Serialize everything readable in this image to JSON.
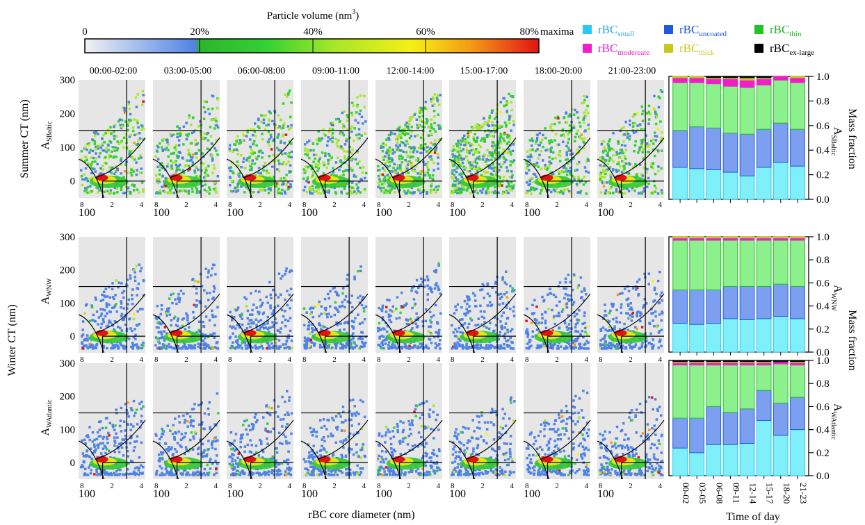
{
  "colorbar": {
    "title": "Particle volume (nm",
    "title_sup": "3",
    "title_close": ")",
    "ticks": [
      "0",
      "20%",
      "40%",
      "60%",
      "80%",
      "maxima"
    ],
    "gradient": [
      {
        "stop": 0.0,
        "color": "#f2f2f2"
      },
      {
        "stop": 0.245,
        "color": "#4f82e6"
      },
      {
        "stop": 0.25,
        "color": "#2db42d"
      },
      {
        "stop": 0.4,
        "color": "#32d232"
      },
      {
        "stop": 0.55,
        "color": "#a8e628"
      },
      {
        "stop": 0.72,
        "color": "#f5f014"
      },
      {
        "stop": 0.85,
        "color": "#f59b14"
      },
      {
        "stop": 1.0,
        "color": "#e11414"
      }
    ]
  },
  "time_windows": [
    "00:00-02:00",
    "03:00-05:00",
    "06:00-08:00",
    "09:00-11:00",
    "12:00-14:00",
    "15:00-17:00",
    "18:00-20:00",
    "21:00-23:00"
  ],
  "axis_labels": {
    "summer_row": "Summer CT (nm)",
    "winter_row": "Winter CT (nm)",
    "core_diameter": "rBC core diameter (nm)",
    "mass_fraction": "Mass fraction",
    "time_of_day": "Time of day"
  },
  "row_labels": [
    {
      "main": "A",
      "sub": "SBaltic"
    },
    {
      "main": "A",
      "sub": "WNW"
    },
    {
      "main": "A",
      "sub": "WAtlantic"
    }
  ],
  "scatter_axes": {
    "yticks": [
      "300",
      "200",
      "100",
      "0"
    ],
    "xticks_minor": [
      "8",
      "2",
      "4"
    ],
    "xtick_major": "100"
  },
  "legend": [
    {
      "main": "rBC",
      "sub": "small",
      "color": "#29c8f0",
      "text_color": "#29a7e6"
    },
    {
      "main": "rBC",
      "sub": "uncoated",
      "color": "#1e5adc",
      "text_color": "#1e50e6"
    },
    {
      "main": "rBC",
      "sub": "thin",
      "color": "#23c323",
      "text_color": "#23b423"
    },
    {
      "main": "rBC",
      "sub": "modereate",
      "color": "#f01ec8",
      "text_color": "#f01ec8"
    },
    {
      "main": "rBC",
      "sub": "thick",
      "color": "#c8c81e",
      "text_color": "#c8c81e"
    },
    {
      "main": "rBC",
      "sub": "ex-large",
      "color": "#000000",
      "text_color": "#000000"
    }
  ],
  "chart_data": [
    {
      "type": "heatmap",
      "title": "Summer CT (nm)",
      "xlabel": "rBC core diameter (nm)",
      "ylabel": "Summer CT (nm)",
      "panels": [
        "00:00-02:00",
        "03:00-05:00",
        "06:00-08:00",
        "09:00-11:00",
        "12:00-14:00",
        "15:00-17:00",
        "18:00-20:00",
        "21:00-23:00"
      ],
      "ylim": [
        -50,
        300
      ],
      "color_scale": [
        "0",
        "20%",
        "40%",
        "60%",
        "80%",
        "maxima"
      ]
    },
    {
      "type": "heatmap",
      "title": "Winter CT (nm)",
      "xlabel": "rBC core diameter (nm)",
      "ylabel": "Winter CT (nm)",
      "panels": [
        "00:00-02:00",
        "03:00-05:00",
        "06:00-08:00",
        "09:00-11:00",
        "12:00-14:00",
        "15:00-17:00",
        "18:00-20:00",
        "21:00-23:00"
      ],
      "ylim": [
        -50,
        300
      ],
      "color_scale": [
        "0",
        "20%",
        "40%",
        "60%",
        "80%",
        "maxima"
      ]
    },
    {
      "type": "bar",
      "stacked": true,
      "xlabel": "Time of day",
      "ylabel": "Mass fraction",
      "ylim": [
        0,
        1
      ],
      "yticks": [
        "0.0",
        "0.2",
        "0.4",
        "0.6",
        "0.8",
        "1.0"
      ],
      "categories": [
        "00-02",
        "03-05",
        "06-08",
        "09-11",
        "12-14",
        "15-17",
        "18-20",
        "21-23"
      ],
      "groups": [
        {
          "label": "ASBaltic",
          "series": [
            {
              "name": "rBCsmall",
              "values": [
                0.26,
                0.25,
                0.24,
                0.22,
                0.19,
                0.26,
                0.3,
                0.27
              ]
            },
            {
              "name": "rBCuncoated",
              "values": [
                0.3,
                0.34,
                0.34,
                0.32,
                0.34,
                0.31,
                0.32,
                0.3
              ]
            },
            {
              "name": "rBCthin",
              "values": [
                0.39,
                0.36,
                0.36,
                0.38,
                0.38,
                0.36,
                0.35,
                0.38
              ]
            },
            {
              "name": "rBCmodereate",
              "values": [
                0.04,
                0.04,
                0.04,
                0.06,
                0.06,
                0.05,
                0.03,
                0.04
              ]
            },
            {
              "name": "rBCthick",
              "values": [
                0.01,
                0.01,
                0.01,
                0.01,
                0.02,
                0.01,
                0.0,
                0.01
              ]
            },
            {
              "name": "rBCex-large",
              "values": [
                0.0,
                0.0,
                0.01,
                0.01,
                0.01,
                0.01,
                0.0,
                0.0
              ]
            }
          ]
        },
        {
          "label": "AWNW",
          "series": [
            {
              "name": "rBCsmall",
              "values": [
                0.25,
                0.24,
                0.25,
                0.29,
                0.28,
                0.29,
                0.31,
                0.29
              ]
            },
            {
              "name": "rBCuncoated",
              "values": [
                0.29,
                0.3,
                0.29,
                0.28,
                0.29,
                0.28,
                0.28,
                0.28
              ]
            },
            {
              "name": "rBCthin",
              "values": [
                0.43,
                0.43,
                0.43,
                0.4,
                0.4,
                0.4,
                0.38,
                0.4
              ]
            },
            {
              "name": "rBCmodereate",
              "values": [
                0.02,
                0.02,
                0.02,
                0.02,
                0.02,
                0.02,
                0.02,
                0.02
              ]
            },
            {
              "name": "rBCthick",
              "values": [
                0.01,
                0.01,
                0.01,
                0.01,
                0.01,
                0.01,
                0.01,
                0.01
              ]
            },
            {
              "name": "rBCex-large",
              "values": [
                0.0,
                0.0,
                0.0,
                0.0,
                0.0,
                0.0,
                0.0,
                0.0
              ]
            }
          ]
        },
        {
          "label": "AWAtlantic",
          "series": [
            {
              "name": "rBCsmall",
              "values": [
                0.24,
                0.2,
                0.27,
                0.27,
                0.28,
                0.48,
                0.35,
                0.4
              ]
            },
            {
              "name": "rBCuncoated",
              "values": [
                0.26,
                0.3,
                0.33,
                0.28,
                0.3,
                0.26,
                0.28,
                0.28
              ]
            },
            {
              "name": "rBCthin",
              "values": [
                0.46,
                0.46,
                0.36,
                0.41,
                0.38,
                0.22,
                0.34,
                0.28
              ]
            },
            {
              "name": "rBCmodereate",
              "values": [
                0.02,
                0.02,
                0.02,
                0.02,
                0.02,
                0.02,
                0.02,
                0.02
              ]
            },
            {
              "name": "rBCthick",
              "values": [
                0.01,
                0.01,
                0.01,
                0.01,
                0.01,
                0.01,
                0.0,
                0.01
              ]
            },
            {
              "name": "rBCex-large",
              "values": [
                0.01,
                0.01,
                0.01,
                0.01,
                0.01,
                0.01,
                0.01,
                0.01
              ]
            }
          ]
        }
      ]
    }
  ]
}
